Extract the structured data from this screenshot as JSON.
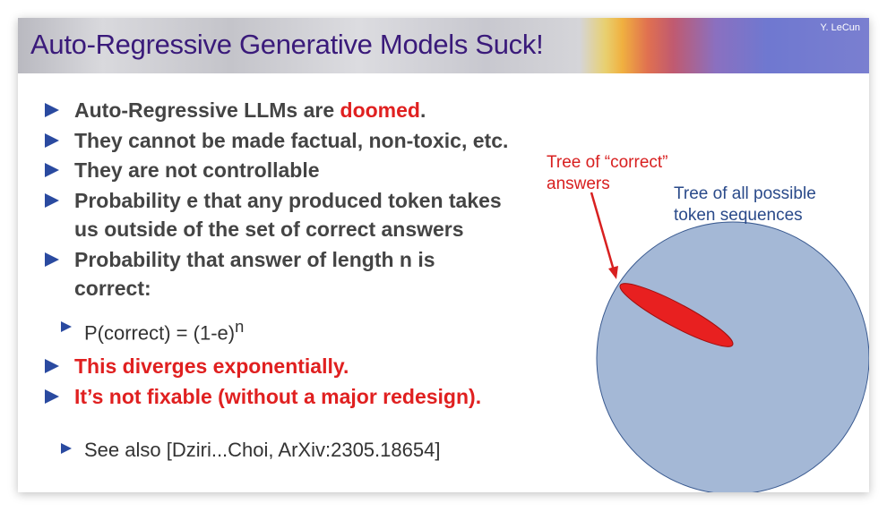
{
  "slide": {
    "title": "Auto-Regressive Generative Models Suck!",
    "author": "Y. LeCun",
    "bullets": [
      {
        "text_a": "Auto-Regressive LLMs are ",
        "text_b": "doomed",
        "text_c": "."
      },
      {
        "text": "They cannot be made factual, non-toxic, etc."
      },
      {
        "text": "They are not controllable"
      },
      {
        "line1": "Probability e that any produced token takes",
        "line2": "us outside of the set of correct answers"
      },
      {
        "line1": "Probability that answer of length n is",
        "line2": "correct:"
      },
      {
        "text": "P(correct) = (1-e)",
        "sup": "n"
      },
      {
        "text": "This diverges exponentially."
      },
      {
        "text": "It’s not fixable (without a major redesign)."
      },
      {
        "text": "See also [Dziri...Choi, ArXiv:2305.18654]"
      }
    ],
    "diagram": {
      "correct_label_1": "Tree of “correct”",
      "correct_label_2": "answers",
      "all_label_1": "Tree of all possible",
      "all_label_2": "token sequences",
      "colors": {
        "circle": "#a4b8d6",
        "ellipse": "#e82020",
        "all_label": "#2a4a8a",
        "correct_label": "#d82020",
        "bullet_marker": "#2a4aa0"
      }
    }
  }
}
